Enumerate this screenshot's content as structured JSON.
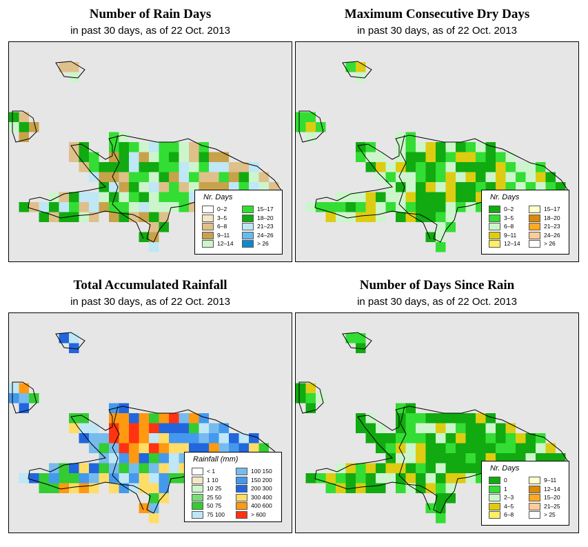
{
  "panels": [
    {
      "title": "Number of Rain Days",
      "subtitle": "in past 30 days, as of  22 Oct. 2013",
      "legend_title": "Nr. Days",
      "legend": [
        {
          "label": "0–2",
          "color": "#ffffff"
        },
        {
          "label": "3–5",
          "color": "#f5e6c4"
        },
        {
          "label": "6–8",
          "color": "#dfc08b"
        },
        {
          "label": "9–11",
          "color": "#c8a24a"
        },
        {
          "label": "12–14",
          "color": "#ccf5cc"
        },
        {
          "label": "15–17",
          "color": "#33dd33"
        },
        {
          "label": "18–20",
          "color": "#11aa11"
        },
        {
          "label": "21–23",
          "color": "#bfe7f5"
        },
        {
          "label": "24–26",
          "color": "#66bbee"
        },
        {
          "label": "> 26",
          "color": "#1188cc"
        }
      ]
    },
    {
      "title": "Maximum Consecutive Dry Days",
      "subtitle": "in past 30 days, as of  22 Oct. 2013",
      "legend_title": "Nr. Days",
      "legend": [
        {
          "label": "0–2",
          "color": "#11aa11"
        },
        {
          "label": "3–5",
          "color": "#33dd33"
        },
        {
          "label": "6–8",
          "color": "#ccf5cc"
        },
        {
          "label": "9–11",
          "color": "#ddcc11"
        },
        {
          "label": "12–14",
          "color": "#ffee66"
        },
        {
          "label": "15–17",
          "color": "#ffffcc"
        },
        {
          "label": "18–20",
          "color": "#dd8800"
        },
        {
          "label": "21–23",
          "color": "#ffaa22"
        },
        {
          "label": "24–26",
          "color": "#ffcc99"
        },
        {
          "label": "> 26",
          "color": "#ffffff"
        }
      ]
    },
    {
      "title": "Total Accumulated Rainfall",
      "subtitle": "in past 30 days, as of  22 Oct. 2013",
      "legend_title": "Rainfall (mm)",
      "legend": [
        {
          "label": "< 1",
          "color": "#ffffff"
        },
        {
          "label": "1    10",
          "color": "#f5e6c4"
        },
        {
          "label": "10    25",
          "color": "#ccf5cc"
        },
        {
          "label": "25    50",
          "color": "#77dd77"
        },
        {
          "label": "50    75",
          "color": "#33cc33"
        },
        {
          "label": "75  100",
          "color": "#bfe7f5"
        },
        {
          "label": "100  150",
          "color": "#77bbee"
        },
        {
          "label": "150  200",
          "color": "#4499ee"
        },
        {
          "label": "200  300",
          "color": "#2266dd"
        },
        {
          "label": "300  400",
          "color": "#ffdd66"
        },
        {
          "label": "400  600",
          "color": "#ff9911"
        },
        {
          "label": "> 600",
          "color": "#ff3311"
        }
      ]
    },
    {
      "title": "Number of Days Since Rain",
      "subtitle": "in past 30 days, as of  22 Oct. 2013",
      "legend_title": "Nr. Days",
      "legend": [
        {
          "label": "0",
          "color": "#11aa11"
        },
        {
          "label": "1",
          "color": "#33dd33"
        },
        {
          "label": "2–3",
          "color": "#ccf5cc"
        },
        {
          "label": "4–5",
          "color": "#ddcc11"
        },
        {
          "label": "6–8",
          "color": "#ffee66"
        },
        {
          "label": "9–11",
          "color": "#ffffcc"
        },
        {
          "label": "12–14",
          "color": "#dd8800"
        },
        {
          "label": "15–20",
          "color": "#ffaa22"
        },
        {
          "label": "21–25",
          "color": "#ffcc99"
        },
        {
          "label": "> 25",
          "color": "#ffffff"
        }
      ]
    }
  ]
}
